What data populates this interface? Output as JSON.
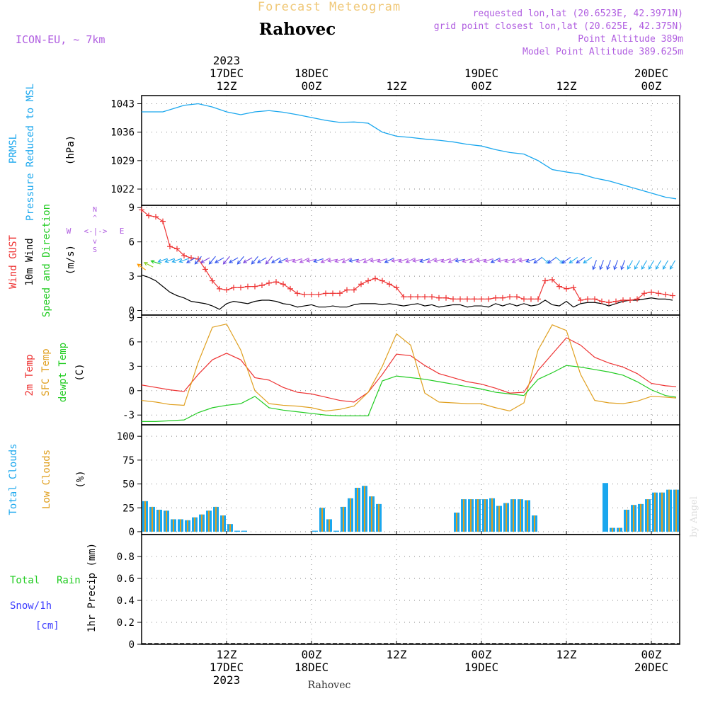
{
  "header": {
    "meteogram_title": "Forecast Meteogram",
    "location": "Rahovec",
    "model": "ICON-EU, ~ 7km",
    "requested": "requested lon,lat (20.6523E, 42.3971N)",
    "grid_point": "grid point closest lon,lat (20.625E, 42.375N)",
    "point_altitude": "Point Altitude 389m",
    "model_altitude": "Model Point Altitude 389.625m",
    "watermark": "by Angel",
    "footer_location": "Rahovec"
  },
  "colors": {
    "pressure": "#1aa7ee",
    "gust": "#ee3333",
    "wind": "#000000",
    "green": "#22cc22",
    "sfc": "#e0a020",
    "purple": "#b05ee0",
    "grid": "#888888",
    "snow": "#3b3bff"
  },
  "time_axis": {
    "top_labels": [
      {
        "t": 12,
        "year": "2023",
        "date": "17DEC",
        "hour": "12Z"
      },
      {
        "t": 24,
        "date": "18DEC",
        "hour": "00Z"
      },
      {
        "t": 36,
        "hour": "12Z"
      },
      {
        "t": 48,
        "date": "19DEC",
        "hour": "00Z"
      },
      {
        "t": 60,
        "hour": "12Z"
      },
      {
        "t": 72,
        "date": "20DEC",
        "hour": "00Z"
      }
    ],
    "bottom_labels": [
      {
        "t": 12,
        "hour": "12Z",
        "date": "17DEC",
        "year": "2023"
      },
      {
        "t": 24,
        "hour": "00Z",
        "date": "18DEC"
      },
      {
        "t": 36,
        "hour": "12Z"
      },
      {
        "t": 48,
        "hour": "00Z",
        "date": "19DEC"
      },
      {
        "t": 60,
        "hour": "12Z"
      },
      {
        "t": 72,
        "hour": "00Z",
        "date": "20DEC"
      }
    ]
  },
  "chart_data": [
    {
      "type": "line",
      "title": "PRMSL Pressure Reduced to MSL",
      "ylabel": "(hPa)",
      "ylim": [
        1018,
        1045
      ],
      "yticks": [
        1022,
        1029,
        1036,
        1043
      ],
      "side_labels": [
        "PRMSL",
        "Pressure Reduced to MSL"
      ],
      "series": [
        {
          "name": "PRMSL",
          "t": [
            0,
            3,
            6,
            8,
            10,
            12,
            14,
            16,
            18,
            20,
            22,
            24,
            26,
            28,
            30,
            32,
            34,
            36,
            38,
            40,
            42,
            44,
            46,
            48,
            50,
            52,
            54,
            56,
            58,
            60,
            62,
            64,
            66,
            68,
            70,
            72,
            74,
            75.5
          ],
          "values": [
            1041,
            1041,
            1042.6,
            1043,
            1042.2,
            1041,
            1040.3,
            1041,
            1041.3,
            1040.9,
            1040.3,
            1039.6,
            1038.9,
            1038.4,
            1038.5,
            1038.2,
            1036,
            1035,
            1034.7,
            1034.3,
            1034,
            1033.6,
            1033,
            1032.6,
            1031.7,
            1031,
            1030.6,
            1029,
            1026.8,
            1026.2,
            1025.7,
            1024.7,
            1024,
            1023,
            1022,
            1021,
            1020,
            1019.6
          ]
        }
      ]
    },
    {
      "type": "line",
      "title": "Wind GUST / 10m Wind Speed and Direction",
      "ylabel": "(m/s)",
      "ylim": [
        -0.4,
        9.2
      ],
      "yticks": [
        0,
        3,
        6,
        9
      ],
      "side_labels": [
        "Wind GUST",
        "10m Wind",
        "Speed and Direction"
      ],
      "compass": {
        "n": "N",
        "s": "S",
        "w": "W",
        "e": "E",
        "arrow": "<-|->",
        "vert": "^",
        "down": "v"
      },
      "series": [
        {
          "name": "Wind GUST",
          "t": [
            0,
            1,
            2,
            3,
            4,
            5,
            6,
            7,
            8,
            9,
            10,
            11,
            12,
            13,
            14,
            15,
            16,
            17,
            18,
            19,
            20,
            21,
            22,
            23,
            24,
            25,
            26,
            27,
            28,
            29,
            30,
            31,
            32,
            33,
            34,
            35,
            36,
            37,
            38,
            39,
            40,
            41,
            42,
            43,
            44,
            45,
            46,
            47,
            48,
            49,
            50,
            51,
            52,
            53,
            54,
            55,
            56,
            57,
            58,
            59,
            60,
            61,
            62,
            63,
            64,
            65,
            66,
            67,
            68,
            69,
            70,
            71,
            72,
            73,
            74,
            75
          ],
          "values": [
            8.8,
            8.3,
            8.2,
            7.8,
            5.6,
            5.4,
            4.8,
            4.6,
            4.5,
            3.6,
            2.6,
            1.9,
            1.8,
            2,
            2,
            2.1,
            2.1,
            2.2,
            2.4,
            2.5,
            2.3,
            1.9,
            1.5,
            1.4,
            1.4,
            1.4,
            1.5,
            1.5,
            1.5,
            1.8,
            1.8,
            2.3,
            2.6,
            2.8,
            2.6,
            2.3,
            2,
            1.2,
            1.2,
            1.2,
            1.2,
            1.2,
            1.1,
            1.1,
            1.0,
            1.0,
            1.0,
            1.0,
            1.0,
            1.0,
            1.1,
            1.1,
            1.2,
            1.2,
            1.0,
            1.0,
            1.0,
            2.6,
            2.7,
            2.1,
            1.9,
            2.0,
            0.9,
            1.0,
            1.0,
            0.8,
            0.7,
            0.8,
            0.9,
            0.9,
            1.0,
            1.5,
            1.6,
            1.5,
            1.4,
            1.3
          ]
        },
        {
          "name": "10m Wind",
          "t": [
            0,
            1,
            2,
            3,
            4,
            5,
            6,
            7,
            8,
            9,
            10,
            11,
            12,
            13,
            14,
            15,
            16,
            17,
            18,
            19,
            20,
            21,
            22,
            23,
            24,
            25,
            26,
            27,
            28,
            29,
            30,
            31,
            32,
            33,
            34,
            35,
            36,
            37,
            38,
            39,
            40,
            41,
            42,
            43,
            44,
            45,
            46,
            47,
            48,
            49,
            50,
            51,
            52,
            53,
            54,
            55,
            56,
            57,
            58,
            59,
            60,
            61,
            62,
            63,
            64,
            65,
            66,
            67,
            68,
            69,
            70,
            71,
            72,
            73,
            74,
            75
          ],
          "values": [
            3.1,
            2.9,
            2.6,
            2.1,
            1.6,
            1.3,
            1.1,
            0.8,
            0.7,
            0.6,
            0.4,
            0.1,
            0.6,
            0.8,
            0.7,
            0.6,
            0.8,
            0.9,
            0.9,
            0.8,
            0.6,
            0.5,
            0.3,
            0.4,
            0.5,
            0.3,
            0.3,
            0.4,
            0.3,
            0.3,
            0.5,
            0.6,
            0.6,
            0.6,
            0.5,
            0.6,
            0.5,
            0.4,
            0.5,
            0.6,
            0.4,
            0.5,
            0.3,
            0.4,
            0.5,
            0.5,
            0.3,
            0.4,
            0.4,
            0.3,
            0.6,
            0.4,
            0.6,
            0.4,
            0.6,
            0.4,
            0.5,
            0.9,
            0.5,
            0.4,
            0.8,
            0.3,
            0.6,
            0.7,
            0.7,
            0.6,
            0.4,
            0.6,
            0.8,
            0.9,
            0.9,
            1.0,
            1.1,
            1.0,
            1.0,
            0.9
          ]
        }
      ]
    },
    {
      "type": "line",
      "title": "2m Temp / SFC Temp / dewpt Temp",
      "ylabel": "(C)",
      "ylim": [
        -4.2,
        9.3
      ],
      "yticks": [
        -3,
        0,
        3,
        6,
        9
      ],
      "side_labels": [
        "2m Temp",
        "SFC Temp",
        "dewpt Temp"
      ],
      "series": [
        {
          "name": "2m Temp",
          "t": [
            0,
            2,
            4,
            6,
            8,
            10,
            12,
            14,
            16,
            18,
            20,
            22,
            24,
            26,
            28,
            30,
            32,
            34,
            36,
            38,
            40,
            42,
            44,
            46,
            48,
            50,
            52,
            54,
            56,
            58,
            60,
            62,
            64,
            66,
            68,
            70,
            72,
            74,
            75.5
          ],
          "values": [
            0.7,
            0.4,
            0.1,
            -0.1,
            2,
            3.8,
            4.6,
            3.8,
            1.6,
            1.3,
            0.4,
            -0.2,
            -0.4,
            -0.8,
            -1.2,
            -1.4,
            -0.2,
            2,
            4.5,
            4.3,
            3.1,
            2.1,
            1.6,
            1.1,
            0.8,
            0.3,
            -0.3,
            -0.2,
            2.5,
            4.5,
            6.5,
            5.6,
            4.1,
            3.4,
            2.9,
            2.1,
            0.9,
            0.6,
            0.5
          ]
        },
        {
          "name": "SFC Temp",
          "t": [
            0,
            2,
            4,
            6,
            8,
            10,
            12,
            14,
            16,
            18,
            20,
            22,
            24,
            26,
            28,
            30,
            32,
            34,
            36,
            38,
            40,
            42,
            44,
            46,
            48,
            50,
            52,
            54,
            56,
            58,
            60,
            62,
            64,
            66,
            68,
            70,
            72,
            74,
            75.5
          ],
          "values": [
            -1.2,
            -1.4,
            -1.7,
            -1.8,
            3.5,
            7.8,
            8.2,
            5,
            0,
            -1.6,
            -1.8,
            -1.9,
            -2.1,
            -2.5,
            -2.3,
            -1.9,
            -0.2,
            3,
            7,
            5.6,
            -0.3,
            -1.4,
            -1.5,
            -1.6,
            -1.6,
            -2.1,
            -2.5,
            -1.5,
            5,
            8.1,
            7.4,
            2,
            -1.2,
            -1.5,
            -1.6,
            -1.3,
            -0.7,
            -0.8,
            -0.9
          ]
        },
        {
          "name": "dewpt Temp",
          "t": [
            0,
            2,
            4,
            6,
            8,
            10,
            12,
            14,
            16,
            18,
            20,
            22,
            24,
            26,
            28,
            30,
            32,
            34,
            36,
            38,
            40,
            42,
            44,
            46,
            48,
            50,
            52,
            54,
            56,
            58,
            60,
            62,
            64,
            66,
            68,
            70,
            72,
            74,
            75.5
          ],
          "values": [
            -3.8,
            -3.8,
            -3.7,
            -3.6,
            -2.7,
            -2.1,
            -1.8,
            -1.6,
            -0.7,
            -2.1,
            -2.4,
            -2.6,
            -2.8,
            -3,
            -3.1,
            -3.1,
            -3.1,
            1.2,
            1.8,
            1.6,
            1.4,
            1.1,
            0.8,
            0.5,
            0.2,
            -0.2,
            -0.4,
            -0.6,
            1.4,
            2.2,
            3.1,
            2.9,
            2.6,
            2.3,
            1.9,
            1.1,
            0.1,
            -0.6,
            -0.8
          ]
        }
      ]
    },
    {
      "type": "bar",
      "title": "Total Clouds / Low Clouds",
      "ylabel": "(%)",
      "ylim": [
        -3,
        112
      ],
      "yticks": [
        0,
        25,
        50,
        75,
        100
      ],
      "side_labels": [
        "Total Clouds",
        "Low Clouds"
      ],
      "t": [
        0,
        1,
        2,
        3,
        4,
        5,
        6,
        7,
        8,
        9,
        10,
        11,
        12,
        13,
        14,
        24,
        25,
        26,
        27,
        28,
        29,
        30,
        31,
        32,
        33,
        44,
        45,
        46,
        47,
        48,
        49,
        50,
        51,
        52,
        53,
        54,
        55,
        65,
        66,
        67,
        68,
        69,
        70,
        71,
        72,
        73,
        74,
        75
      ],
      "series": [
        {
          "name": "Total Clouds",
          "values": [
            32,
            26,
            23,
            22,
            13,
            13,
            12,
            15,
            18,
            22,
            26,
            17,
            8,
            1,
            1,
            1,
            25,
            13,
            1,
            26,
            35,
            46,
            48,
            37,
            29,
            20,
            34,
            34,
            34,
            34,
            35,
            27,
            30,
            34,
            34,
            33,
            17,
            51,
            4,
            4,
            23,
            28,
            29,
            34,
            41,
            41,
            44,
            44
          ]
        },
        {
          "name": "Low Clouds",
          "values": [
            32,
            26,
            23,
            22,
            13,
            13,
            12,
            15,
            18,
            22,
            26,
            17,
            8,
            0,
            0,
            0,
            25,
            13,
            0,
            26,
            35,
            46,
            48,
            37,
            29,
            20,
            34,
            34,
            34,
            34,
            35,
            27,
            30,
            34,
            34,
            33,
            17,
            0,
            4,
            4,
            23,
            28,
            29,
            34,
            41,
            41,
            44,
            44
          ]
        }
      ]
    },
    {
      "type": "line",
      "title": "1hr Precip",
      "ylabel": "1hr Precip (mm)",
      "ylim": [
        0,
        1
      ],
      "yticks": [
        0,
        0.2,
        0.4,
        0.6,
        0.8
      ],
      "ytick_labels": [
        "0",
        "0.2",
        "0.4",
        "0.6",
        "0.8"
      ],
      "side_labels": [
        "Total",
        "Rain",
        "Snow/1h",
        "[cm]"
      ],
      "series": [
        {
          "name": "Total Rain",
          "values": []
        },
        {
          "name": "Snow/1h",
          "values": []
        }
      ]
    }
  ]
}
